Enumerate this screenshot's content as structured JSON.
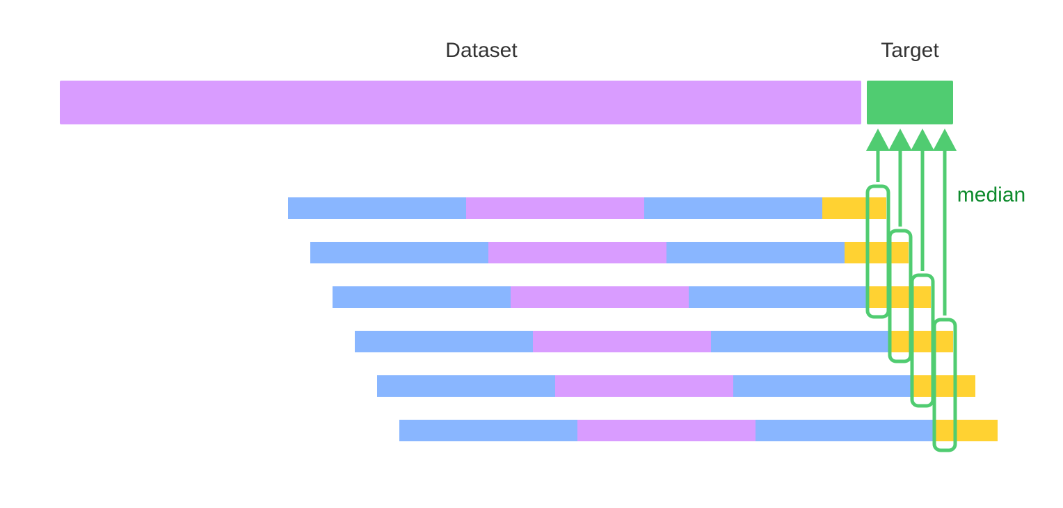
{
  "labels": {
    "dataset": "Dataset",
    "target": "Target",
    "median": "median"
  },
  "colors": {
    "dataset_purple": "#d99cff",
    "target_green": "#50cc71",
    "window_blue": "#89b6ff",
    "window_purple": "#d99cff",
    "forecast_yellow": "#ffd232",
    "highlight_green": "#50cc71",
    "median_text": "#0d8a2c",
    "title_text": "#333333"
  },
  "windows": [
    {
      "name": "window-1"
    },
    {
      "name": "window-2"
    },
    {
      "name": "window-3"
    },
    {
      "name": "window-4"
    },
    {
      "name": "window-5"
    },
    {
      "name": "window-6"
    }
  ],
  "median_arrows": 4
}
